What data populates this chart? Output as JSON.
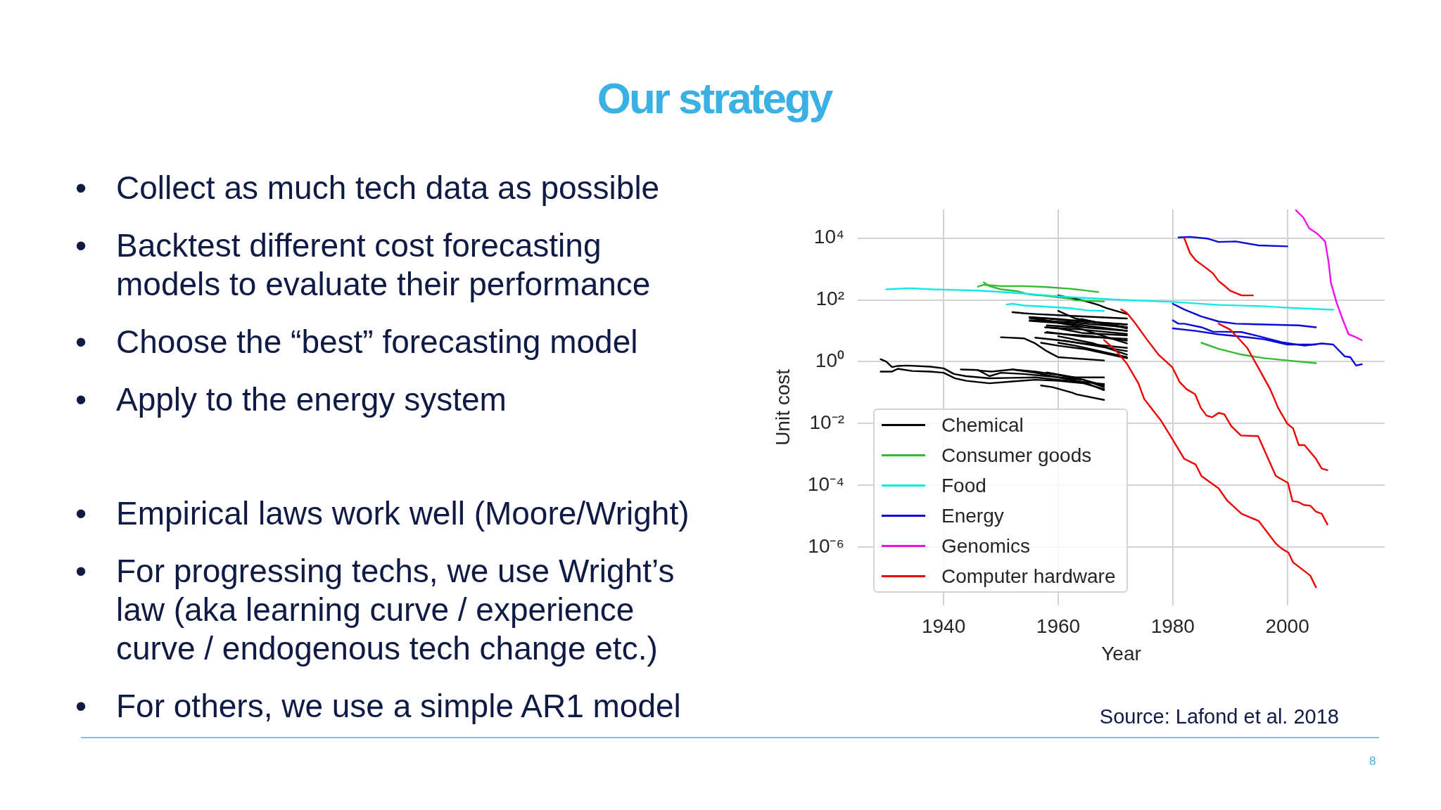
{
  "chart_data": [
    {
      "type": "other",
      "title": "Our strategy",
      "annotations": [
        "• Collect as much tech data as possible",
        "• Backtest different cost forecasting models to evaluate their performance",
        "• Choose the “best” forecasting model",
        "• Apply to the energy system",
        "• Empirical laws work well (Moore/Wright)",
        "• For progressing techs, we use Wright’s law (aka learning curve / experience curve / endogenous tech change etc.)",
        "• For others, we use a simple AR1 model",
        "8"
      ]
    },
    {
      "type": "line",
      "xlabel": "Year",
      "ylabel": "Unit cost",
      "annotations": [
        "Source: Lafond et al. 2018"
      ],
      "xlim": [
        1925,
        2017
      ],
      "xticks": [
        1940,
        1960,
        1980,
        2000
      ],
      "ylim": [
        1.3e-08,
        85000
      ],
      "yticks": [
        {
          "value": 1e-06,
          "label": "10⁻⁶"
        },
        {
          "value": 0.0001,
          "label": "10⁻⁴"
        },
        {
          "value": 0.01,
          "label": "10⁻²"
        },
        {
          "value": 1,
          "label": "10⁰"
        },
        {
          "value": 100,
          "label": "10²"
        },
        {
          "value": 10000,
          "label": "10⁴"
        }
      ],
      "log": "y",
      "grid": true,
      "legend": "bottom left",
      "marker": "none",
      "line_style": "solid",
      "series": [
        {
          "name": "Chemical",
          "color": "#000000",
          "x": [
            1929,
            1930,
            1931,
            1932,
            1933.6,
            1937.7,
            1940,
            1941.8,
            1943.9,
            1948,
            1952,
            1956,
            1960,
            1964.4,
            1968
          ],
          "values": [
            1.2,
            1.0,
            0.67,
            0.73,
            0.75,
            0.69,
            0.61,
            0.4,
            0.34,
            0.29,
            0.3,
            0.31,
            0.26,
            0.22,
            0.19
          ]
        },
        {
          "color": "#000000",
          "x": [
            1929,
            1931,
            1932,
            1934.5,
            1937.7,
            1940,
            1942,
            1944,
            1948,
            1952,
            1956,
            1960,
            1964.4,
            1968
          ],
          "values": [
            0.48,
            0.48,
            0.59,
            0.5,
            0.48,
            0.44,
            0.29,
            0.24,
            0.2,
            0.23,
            0.26,
            0.24,
            0.2,
            0.13
          ]
        },
        {
          "color": "#000000",
          "x": [
            1943,
            1946,
            1948,
            1950,
            1954,
            1958,
            1964.4,
            1968
          ],
          "values": [
            0.56,
            0.54,
            0.34,
            0.44,
            0.4,
            0.34,
            0.26,
            0.17
          ]
        },
        {
          "color": "#000000",
          "x": [
            1946,
            1948.4,
            1952,
            1956,
            1960,
            1964.4,
            1968
          ],
          "values": [
            0.52,
            0.48,
            0.56,
            0.48,
            0.37,
            0.26,
            0.15
          ]
        },
        {
          "color": "#000000",
          "x": [
            1952,
            1956,
            1960,
            1964.4,
            1968
          ],
          "values": [
            0.56,
            0.44,
            0.31,
            0.22,
            0.12
          ]
        },
        {
          "color": "#000000",
          "x": [
            1957,
            1959,
            1962.4,
            1963.2,
            1968
          ],
          "values": [
            0.17,
            0.15,
            0.1,
            0.088,
            0.058
          ]
        },
        {
          "color": "#000000",
          "x": [
            1958,
            1963,
            1968
          ],
          "values": [
            0.45,
            0.31,
            0.31
          ]
        },
        {
          "color": "#000000",
          "x": [
            1960,
            1962.4,
            1965,
            1967,
            1968.5,
            1972
          ],
          "values": [
            140,
            115,
            89,
            69,
            54,
            35
          ]
        },
        {
          "color": "#000000",
          "x": [
            1952,
            1954,
            1956,
            1960,
            1963,
            1972
          ],
          "values": [
            40,
            37,
            35,
            32,
            30,
            25
          ]
        },
        {
          "color": "#000000",
          "x": [
            1955,
            1958,
            1962.4,
            1972
          ],
          "values": [
            27,
            25,
            21,
            16
          ]
        },
        {
          "color": "#000000",
          "x": [
            1955,
            1960,
            1964.4,
            1972
          ],
          "values": [
            21,
            18,
            13,
            9.9
          ]
        },
        {
          "color": "#000000",
          "x": [
            1958,
            1960,
            1964.4,
            1972
          ],
          "values": [
            13,
            12,
            8.4,
            7.1
          ]
        },
        {
          "color": "#000000",
          "x": [
            1958,
            1964.4,
            1972
          ],
          "values": [
            9.1,
            6.5,
            5.5
          ]
        },
        {
          "color": "#000000",
          "x": [
            1956,
            1960,
            1964.4,
            1972
          ],
          "values": [
            6.0,
            5.0,
            3.9,
            2.8
          ]
        },
        {
          "color": "#000000",
          "x": [
            1957,
            1960,
            1964.4,
            1972
          ],
          "values": [
            4.1,
            3.3,
            2.6,
            1.3
          ]
        },
        {
          "color": "#000000",
          "x": [
            1950,
            1954,
            1956,
            1958,
            1960,
            1962.4,
            1968
          ],
          "values": [
            6.2,
            5.7,
            3.9,
            2.2,
            1.4,
            1.3,
            1.1
          ]
        },
        {
          "color": "#000000",
          "x": [
            1960,
            1963,
            1967,
            1972
          ],
          "values": [
            44,
            25,
            18,
            13
          ]
        },
        {
          "color": "#000000",
          "x": [
            1958,
            1963,
            1972
          ],
          "values": [
            15,
            13,
            3.9
          ]
        },
        {
          "color": "#000000",
          "x": [
            1960,
            1963,
            1972
          ],
          "values": [
            4.1,
            3.3,
            1.4
          ]
        },
        {
          "color": "#000000",
          "x": [
            1955,
            1960,
            1965,
            1972
          ],
          "values": [
            28,
            24,
            20,
            16
          ]
        },
        {
          "color": "#000000",
          "x": [
            1955,
            1962,
            1972
          ],
          "values": [
            22,
            19,
            13
          ]
        },
        {
          "color": "#000000",
          "x": [
            1957.7,
            1964,
            1972
          ],
          "values": [
            13,
            11,
            7.9
          ]
        },
        {
          "color": "#000000",
          "x": [
            1957.7,
            1966,
            1972
          ],
          "values": [
            8.7,
            6.7,
            4.8
          ]
        },
        {
          "color": "#000000",
          "x": [
            1961,
            1966,
            1972
          ],
          "values": [
            4.8,
            3.4,
            2.2
          ]
        },
        {
          "color": "#000000",
          "x": [
            1955,
            1962,
            1972
          ],
          "values": [
            26,
            17,
            10
          ]
        },
        {
          "color": "#000000",
          "x": [
            1964,
            1968,
            1972
          ],
          "values": [
            24,
            17,
            12
          ]
        },
        {
          "color": "#000000",
          "x": [
            1960,
            1966,
            1972
          ],
          "values": [
            6.7,
            4.0,
            1.7
          ]
        },
        {
          "name": "Consumer goods",
          "color": "#33bb33",
          "x": [
            1946,
            1947,
            1950,
            1954,
            1958,
            1962,
            1964,
            1967
          ],
          "values": [
            270,
            310,
            280,
            280,
            260,
            230,
            210,
            180
          ]
        },
        {
          "color": "#33bb33",
          "x": [
            1947,
            1948,
            1950,
            1953,
            1955,
            1958,
            1962,
            1963,
            1968
          ],
          "values": [
            370,
            280,
            220,
            190,
            150,
            135,
            110,
            97,
            89
          ]
        },
        {
          "color": "#33bb33",
          "x": [
            1985,
            1988,
            1992,
            1996,
            2000,
            2005
          ],
          "values": [
            4.1,
            2.6,
            1.7,
            1.3,
            1.1,
            0.9
          ]
        },
        {
          "name": "Food",
          "color": "#11e8e8",
          "x": [
            1930,
            1934,
            1938,
            1942,
            1946,
            1950,
            1954,
            1958,
            1963,
            1971,
            1980,
            1988,
            1996,
            2000,
            2008
          ],
          "values": [
            220,
            240,
            220,
            210,
            200,
            180,
            160,
            140,
            120,
            100,
            86,
            69,
            62,
            56,
            48
          ]
        },
        {
          "color": "#11e8e8",
          "x": [
            1951,
            1952,
            1954,
            1958,
            1962,
            1965,
            1968
          ],
          "values": [
            71,
            75,
            66,
            60,
            54,
            46,
            44
          ]
        },
        {
          "name": "Energy",
          "color": "#0a0ad8",
          "x": [
            1981,
            1983,
            1986,
            1988,
            1991,
            1995,
            2000
          ],
          "values": [
            10500,
            11000,
            9700,
            7500,
            7800,
            5800,
            5400
          ]
        },
        {
          "color": "#0a0ad8",
          "x": [
            1980,
            1982,
            1985,
            1988,
            1991,
            1996,
            2002,
            2005
          ],
          "values": [
            75,
            49,
            29,
            20,
            17,
            16,
            15,
            13
          ]
        },
        {
          "color": "#0a0ad8",
          "x": [
            1980,
            1981,
            1982,
            1985,
            1987,
            1992,
            1995,
            1999,
            2003,
            2006,
            2008,
            2010,
            2011,
            2012,
            2013
          ],
          "values": [
            22,
            17,
            17,
            13,
            9.4,
            9.1,
            6.7,
            4.3,
            3.3,
            3.9,
            3.6,
            1.5,
            1.4,
            0.75,
            0.83
          ]
        },
        {
          "color": "#0a0ad8",
          "x": [
            1980,
            1984,
            1988,
            1992,
            1996,
            2000,
            2005
          ],
          "values": [
            12,
            9.9,
            7.7,
            6.5,
            5.3,
            3.6,
            3.6
          ]
        },
        {
          "name": "Genomics",
          "color": "#ee11ee",
          "x": [
            2001.5,
            2002.8,
            2003.8,
            2005.2,
            2006.6,
            2007.2,
            2007.6,
            2008.6,
            2009.6,
            2010.7,
            2011.7,
            2013
          ],
          "values": [
            80000,
            46000,
            21000,
            14000,
            7800,
            1700,
            370,
            82,
            25,
            7.7,
            6.5,
            5.0
          ]
        },
        {
          "name": "Computer hardware",
          "color": "#ee0000",
          "x": [
            1982,
            1983,
            1984,
            1985.5,
            1987,
            1988,
            1989,
            1990,
            1992,
            1994
          ],
          "values": [
            10000,
            3300,
            1900,
            1200,
            730,
            410,
            290,
            200,
            140,
            140
          ]
        },
        {
          "color": "#ee0000",
          "x": [
            1968,
            1970,
            1972,
            1974,
            1975,
            1978,
            1980,
            1982,
            1984,
            1985,
            1988,
            1989.5,
            1992,
            1995,
            1998,
            1999,
            2000.2,
            2001,
            2002.3,
            2004,
            2005
          ],
          "values": [
            5.0,
            2.4,
            0.86,
            0.2,
            0.063,
            0.012,
            0.003,
            0.00072,
            0.00047,
            0.0002,
            8e-05,
            3.2e-05,
            1.2e-05,
            7e-06,
            1.3e-06,
            9e-07,
            6.6e-07,
            3.2e-07,
            2.1e-07,
            1.2e-07,
            5e-08
          ]
        },
        {
          "color": "#ee0000",
          "x": [
            1971,
            1972,
            1973.4,
            1975.4,
            1977.5,
            1979.9,
            1981.2,
            1982.4,
            1983.9,
            1984.9,
            1985.9,
            1986.9,
            1988,
            1989,
            1990.2,
            1991.9,
            1994.9,
            1998,
            2000.1,
            2000.9,
            2001.9,
            2002.9,
            2004,
            2005,
            2006,
            2007
          ],
          "values": [
            49,
            38,
            18,
            5.5,
            1.7,
            0.67,
            0.22,
            0.13,
            0.088,
            0.032,
            0.018,
            0.016,
            0.022,
            0.02,
            0.0083,
            0.0041,
            0.0039,
            0.0002,
            0.00012,
            3.1e-05,
            2.9e-05,
            2.3e-05,
            2.2e-05,
            1.4e-05,
            1.2e-05,
            5.4e-06
          ]
        },
        {
          "color": "#ee0000",
          "x": [
            1988,
            1990,
            1991,
            1993,
            1995,
            1997,
            1998.4,
            2000,
            2001,
            2002,
            2003,
            2005,
            2006,
            2007
          ],
          "values": [
            17,
            11,
            7.1,
            2.8,
            0.61,
            0.13,
            0.032,
            0.0098,
            0.007,
            0.002,
            0.002,
            0.00072,
            0.00035,
            0.00031
          ]
        }
      ]
    }
  ]
}
